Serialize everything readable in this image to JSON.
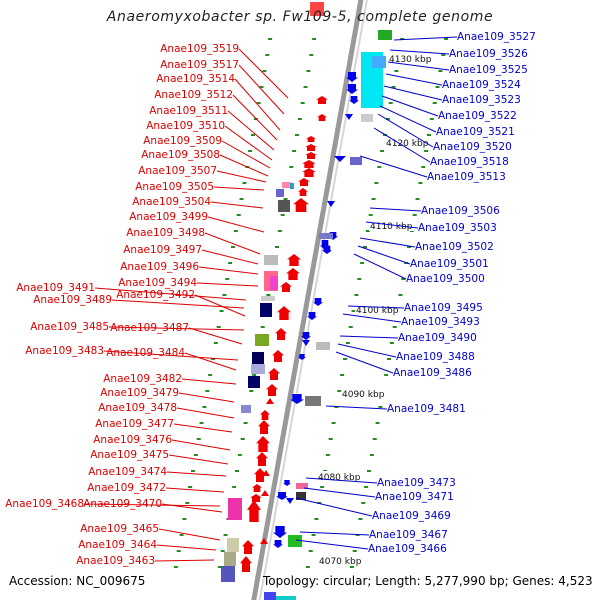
{
  "title": "Anaeromyxobacter sp. Fw109-5, complete genome",
  "accession": "Accession: NC_009675",
  "summary": "Topology: circular; Length: 5,277,990 bp; Genes: 4,523",
  "colors": {
    "left_labels": "#dd0000",
    "right_labels": "#0000cc",
    "backbone": "#999999",
    "ticks": "#228b22"
  },
  "scale_marks": [
    "4130 kbp",
    "4120 kbp",
    "4110 kbp",
    "4100 kbp",
    "4090 kbp",
    "4080 kbp",
    "4070 kbp"
  ],
  "left_genes": [
    "Anae109_3519",
    "Anae109_3517",
    "Anae109_3514",
    "Anae109_3512",
    "Anae109_3511",
    "Anae109_3510",
    "Anae109_3509",
    "Anae109_3508",
    "Anae109_3507",
    "Anae109_3505",
    "Anae109_3504",
    "Anae109_3499",
    "Anae109_3498",
    "Anae109_3497",
    "Anae109_3496",
    "Anae109_3494",
    "Anae109_3491",
    "Anae109_3489",
    "Anae109_3492",
    "Anae109_3485",
    "Anae109_3487",
    "Anae109_3483",
    "Anae109_3484",
    "Anae109_3482",
    "Anae109_3479",
    "Anae109_3478",
    "Anae109_3477",
    "Anae109_3476",
    "Anae109_3475",
    "Anae109_3474",
    "Anae109_3472",
    "Anae109_3468",
    "Anae109_3470",
    "Anae109_3465",
    "Anae109_3464",
    "Anae109_3463"
  ],
  "right_genes": [
    "Anae109_3527",
    "Anae109_3526",
    "Anae109_3525",
    "Anae109_3524",
    "Anae109_3523",
    "Anae109_3522",
    "Anae109_3521",
    "Anae109_3520",
    "Anae109_3518",
    "Anae109_3513",
    "Anae109_3506",
    "Anae109_3503",
    "Anae109_3502",
    "Anae109_3501",
    "Anae109_3500",
    "Anae109_3495",
    "Anae109_3493",
    "Anae109_3490",
    "Anae109_3488",
    "Anae109_3486",
    "Anae109_3481",
    "Anae109_3473",
    "Anae109_3471",
    "Anae109_3469",
    "Anae109_3467",
    "Anae109_3466"
  ]
}
